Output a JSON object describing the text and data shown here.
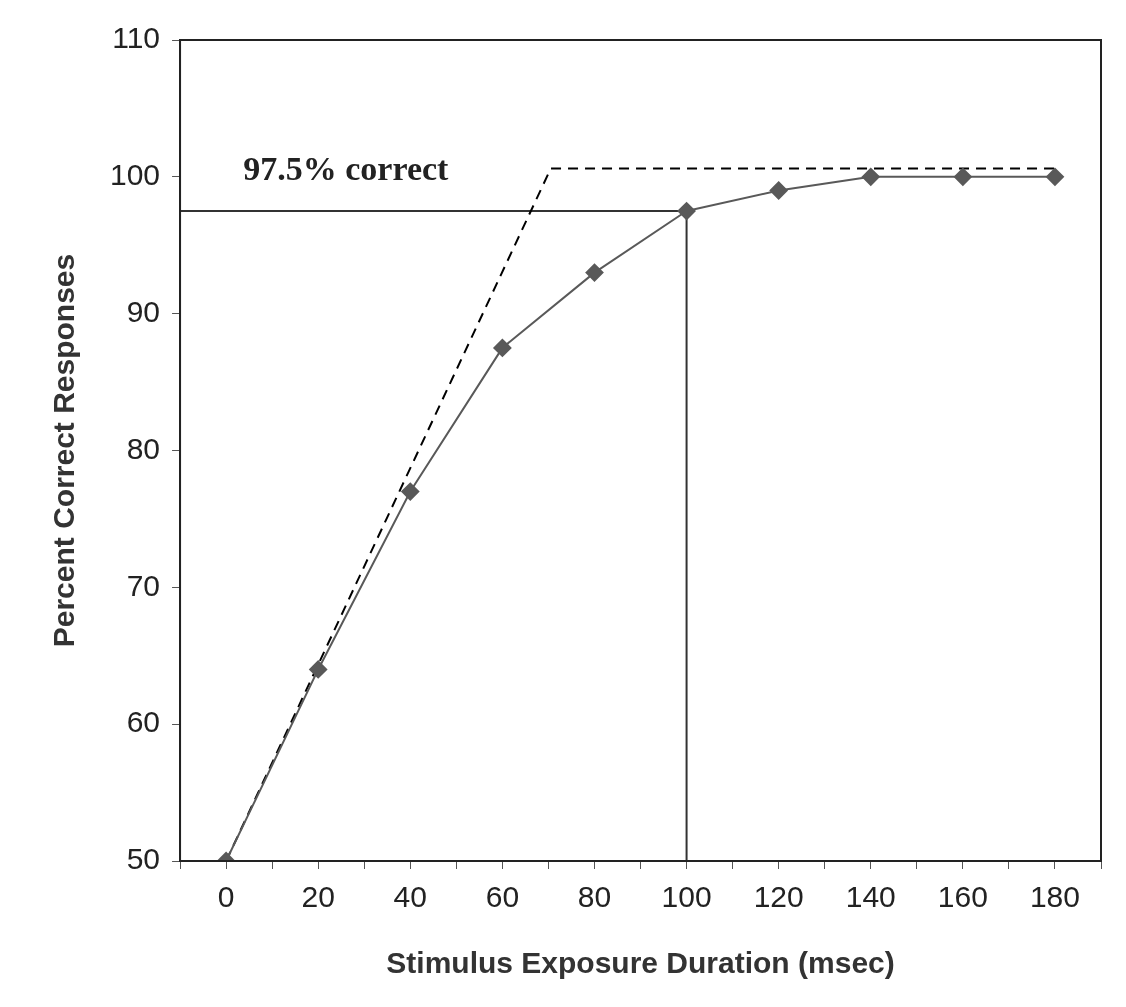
{
  "chart_data": {
    "type": "line",
    "xlabel": "Stimulus Exposure Duration (msec)",
    "ylabel": "Percent Correct Responses",
    "x": [
      0,
      20,
      40,
      60,
      80,
      100,
      120,
      140,
      160,
      180
    ],
    "series": [
      {
        "color": "#595959",
        "marker": "diamond",
        "line_style": "solid",
        "values": [
          50,
          64,
          77,
          87.5,
          93,
          97.5,
          99,
          100,
          100,
          100
        ]
      },
      {
        "color": "#000000",
        "marker": "none",
        "line_style": "dashed",
        "x": [
          0,
          70.5,
          180
        ],
        "values": [
          50,
          100.6,
          100.6
        ]
      },
      {
        "color": "#333333",
        "marker": "none",
        "line_style": "solid",
        "x": [
          -10,
          100,
          100
        ],
        "values": [
          97.5,
          97.5,
          50
        ]
      }
    ],
    "xlim": [
      -10,
      190
    ],
    "xticks": [
      {
        "value": -10,
        "label": null
      },
      0,
      {
        "value": 10,
        "label": null
      },
      20,
      {
        "value": 30,
        "label": null
      },
      40,
      {
        "value": 50,
        "label": null
      },
      60,
      {
        "value": 70,
        "label": null
      },
      80,
      {
        "value": 90,
        "label": null
      },
      100,
      {
        "value": 110,
        "label": null
      },
      120,
      {
        "value": 130,
        "label": null
      },
      140,
      {
        "value": 150,
        "label": null
      },
      160,
      {
        "value": 170,
        "label": null
      },
      180,
      {
        "value": 190,
        "label": null
      }
    ],
    "ylim": [
      50,
      110
    ],
    "yticks": [
      50,
      60,
      70,
      80,
      90,
      100,
      110
    ],
    "grid": false,
    "legend": false,
    "annotations": [
      "97.5% correct"
    ]
  }
}
